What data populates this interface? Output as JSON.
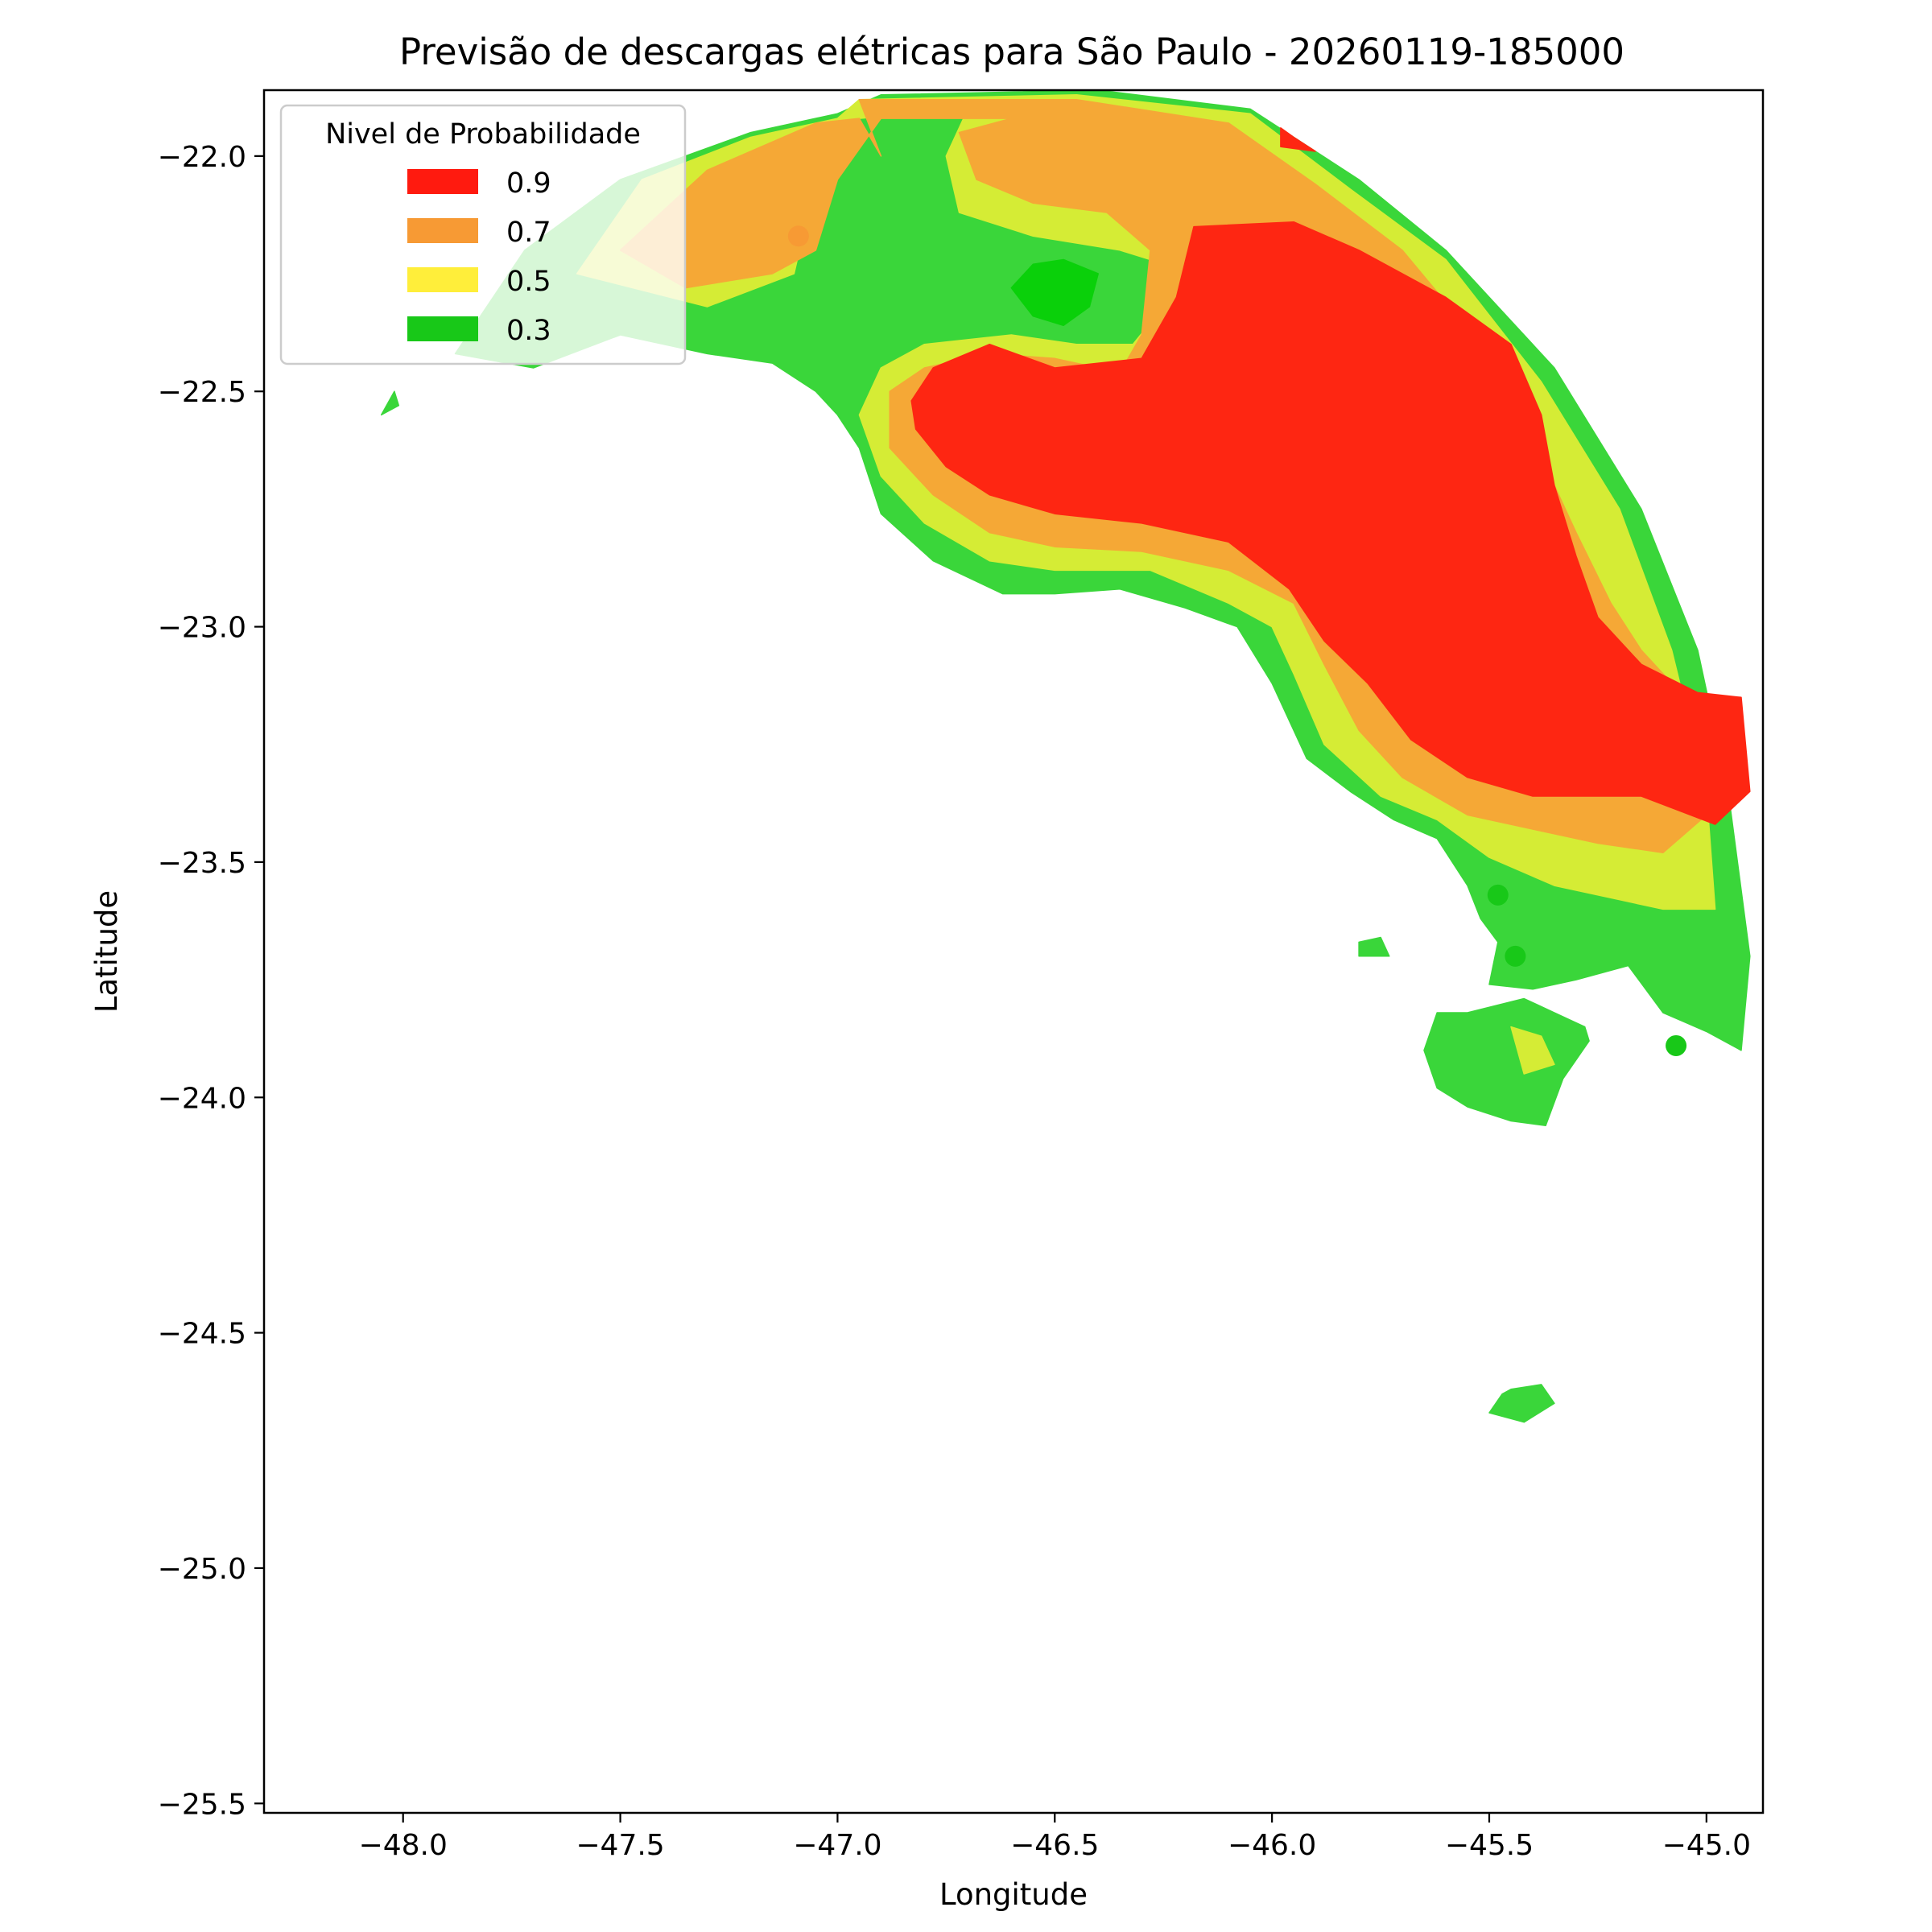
{
  "chart_data": {
    "type": "heatmap",
    "title": "Previsão de descargas elétricas para São Paulo - 20260119-185000",
    "xlabel": "Longitude",
    "ylabel": "Latitude",
    "xlim": [
      -48.32,
      -44.87
    ],
    "ylim": [
      -25.52,
      -21.86
    ],
    "xticks": [
      {
        "value": -48.0,
        "label": "−48.0"
      },
      {
        "value": -47.5,
        "label": "−47.5"
      },
      {
        "value": -47.0,
        "label": "−47.0"
      },
      {
        "value": -46.5,
        "label": "−46.5"
      },
      {
        "value": -46.0,
        "label": "−46.0"
      },
      {
        "value": -45.5,
        "label": "−45.5"
      },
      {
        "value": -45.0,
        "label": "−45.0"
      }
    ],
    "yticks": [
      {
        "value": -22.0,
        "label": "−22.0"
      },
      {
        "value": -22.5,
        "label": "−22.5"
      },
      {
        "value": -23.0,
        "label": "−23.0"
      },
      {
        "value": -23.5,
        "label": "−23.5"
      },
      {
        "value": -24.0,
        "label": "−24.0"
      },
      {
        "value": -24.5,
        "label": "−24.5"
      },
      {
        "value": -25.0,
        "label": "−25.0"
      },
      {
        "value": -25.5,
        "label": "−25.5"
      }
    ],
    "grid": false,
    "legend": {
      "title": "Nivel de Probabilidade",
      "placement": "upper-left",
      "entries": [
        {
          "label": "0.9",
          "color": "#ff1a0f"
        },
        {
          "label": "0.7",
          "color": "#f79a34"
        },
        {
          "label": "0.5",
          "color": "#ffee3a"
        },
        {
          "label": "0.3",
          "color": "#18c818"
        }
      ]
    },
    "levels": [
      {
        "level": 0.3,
        "color": "#3ad63a",
        "polygons": [
          [
            [
              -47.88,
              -22.42
            ],
            [
              -47.72,
              -22.2
            ],
            [
              -47.5,
              -22.05
            ],
            [
              -47.2,
              -21.95
            ],
            [
              -47.0,
              -21.91
            ],
            [
              -46.9,
              -21.87
            ],
            [
              -46.4,
              -21.86
            ],
            [
              -46.05,
              -21.9
            ],
            [
              -45.8,
              -22.05
            ],
            [
              -45.6,
              -22.2
            ],
            [
              -45.35,
              -22.45
            ],
            [
              -45.15,
              -22.75
            ],
            [
              -45.02,
              -23.05
            ],
            [
              -44.95,
              -23.35
            ],
            [
              -44.9,
              -23.7
            ],
            [
              -44.92,
              -23.9
            ],
            [
              -45.0,
              -23.86
            ],
            [
              -45.1,
              -23.82
            ],
            [
              -45.18,
              -23.72
            ],
            [
              -45.3,
              -23.75
            ],
            [
              -45.4,
              -23.77
            ],
            [
              -45.5,
              -23.76
            ],
            [
              -45.48,
              -23.67
            ],
            [
              -45.52,
              -23.62
            ],
            [
              -45.55,
              -23.55
            ],
            [
              -45.62,
              -23.45
            ],
            [
              -45.72,
              -23.41
            ],
            [
              -45.82,
              -23.35
            ],
            [
              -45.92,
              -23.28
            ],
            [
              -46.0,
              -23.12
            ],
            [
              -46.08,
              -23.0
            ],
            [
              -46.2,
              -22.96
            ],
            [
              -46.35,
              -22.92
            ],
            [
              -46.5,
              -22.93
            ],
            [
              -46.62,
              -22.93
            ],
            [
              -46.78,
              -22.86
            ],
            [
              -46.9,
              -22.76
            ],
            [
              -46.95,
              -22.62
            ],
            [
              -47.0,
              -22.55
            ],
            [
              -47.05,
              -22.5
            ],
            [
              -47.15,
              -22.44
            ],
            [
              -47.3,
              -22.42
            ],
            [
              -47.5,
              -22.38
            ],
            [
              -47.7,
              -22.45
            ],
            [
              -47.88,
              -22.42
            ]
          ],
          [
            [
              -45.55,
              -23.82
            ],
            [
              -45.42,
              -23.79
            ],
            [
              -45.35,
              -23.82
            ],
            [
              -45.28,
              -23.85
            ],
            [
              -45.27,
              -23.88
            ],
            [
              -45.33,
              -23.96
            ],
            [
              -45.37,
              -24.06
            ],
            [
              -45.45,
              -24.05
            ],
            [
              -45.55,
              -24.02
            ],
            [
              -45.62,
              -23.98
            ],
            [
              -45.65,
              -23.9
            ],
            [
              -45.62,
              -23.82
            ],
            [
              -45.55,
              -23.82
            ]
          ],
          [
            [
              -45.45,
              -24.62
            ],
            [
              -45.38,
              -24.61
            ],
            [
              -45.35,
              -24.65
            ],
            [
              -45.42,
              -24.69
            ],
            [
              -45.5,
              -24.67
            ],
            [
              -45.47,
              -24.63
            ],
            [
              -45.45,
              -24.62
            ]
          ],
          [
            [
              -45.8,
              -23.67
            ],
            [
              -45.75,
              -23.66
            ],
            [
              -45.73,
              -23.7
            ],
            [
              -45.8,
              -23.7
            ],
            [
              -45.8,
              -23.67
            ]
          ],
          [
            [
              -48.05,
              -22.55
            ],
            [
              -48.02,
              -22.5
            ],
            [
              -48.01,
              -22.53
            ],
            [
              -48.05,
              -22.55
            ]
          ]
        ]
      },
      {
        "level": 0.5,
        "color": "#d5ec35",
        "polygons": [
          [
            [
              -47.6,
              -22.25
            ],
            [
              -47.45,
              -22.05
            ],
            [
              -47.2,
              -21.96
            ],
            [
              -47.0,
              -21.92
            ],
            [
              -46.95,
              -21.88
            ],
            [
              -46.45,
              -21.87
            ],
            [
              -46.05,
              -21.91
            ],
            [
              -45.82,
              -22.07
            ],
            [
              -45.6,
              -22.22
            ],
            [
              -45.38,
              -22.48
            ],
            [
              -45.2,
              -22.75
            ],
            [
              -45.08,
              -23.05
            ],
            [
              -45.0,
              -23.35
            ],
            [
              -44.98,
              -23.6
            ],
            [
              -45.1,
              -23.6
            ],
            [
              -45.2,
              -23.58
            ],
            [
              -45.35,
              -23.55
            ],
            [
              -45.5,
              -23.49
            ],
            [
              -45.62,
              -23.41
            ],
            [
              -45.75,
              -23.36
            ],
            [
              -45.88,
              -23.25
            ],
            [
              -45.95,
              -23.1
            ],
            [
              -46.0,
              -23.0
            ],
            [
              -46.1,
              -22.95
            ],
            [
              -46.28,
              -22.88
            ],
            [
              -46.5,
              -22.88
            ],
            [
              -46.65,
              -22.86
            ],
            [
              -46.8,
              -22.78
            ],
            [
              -46.9,
              -22.68
            ],
            [
              -46.95,
              -22.55
            ],
            [
              -46.9,
              -22.45
            ],
            [
              -46.8,
              -22.4
            ],
            [
              -46.6,
              -22.38
            ],
            [
              -46.45,
              -22.4
            ],
            [
              -46.32,
              -22.4
            ],
            [
              -46.25,
              -22.32
            ],
            [
              -46.28,
              -22.22
            ],
            [
              -46.35,
              -22.2
            ],
            [
              -46.55,
              -22.17
            ],
            [
              -46.72,
              -22.12
            ],
            [
              -46.75,
              -22.0
            ],
            [
              -46.7,
              -21.9
            ],
            [
              -46.95,
              -21.92
            ],
            [
              -47.05,
              -22.05
            ],
            [
              -47.1,
              -22.25
            ],
            [
              -47.3,
              -22.32
            ],
            [
              -47.6,
              -22.25
            ]
          ],
          [
            [
              -45.45,
              -23.85
            ],
            [
              -45.38,
              -23.87
            ],
            [
              -45.35,
              -23.93
            ],
            [
              -45.42,
              -23.95
            ],
            [
              -45.45,
              -23.85
            ]
          ]
        ]
      },
      {
        "level": 0.7,
        "color": "#f5a836",
        "polygons": [
          [
            [
              -47.5,
              -22.2
            ],
            [
              -47.3,
              -22.03
            ],
            [
              -47.05,
              -21.93
            ],
            [
              -46.95,
              -21.92
            ],
            [
              -46.9,
              -22.0
            ],
            [
              -46.95,
              -21.88
            ],
            [
              -46.45,
              -21.88
            ],
            [
              -46.1,
              -21.93
            ],
            [
              -45.9,
              -22.06
            ],
            [
              -45.7,
              -22.2
            ],
            [
              -45.52,
              -22.4
            ],
            [
              -45.4,
              -22.6
            ],
            [
              -45.3,
              -22.8
            ],
            [
              -45.22,
              -22.95
            ],
            [
              -45.15,
              -23.05
            ],
            [
              -45.05,
              -23.15
            ],
            [
              -45.0,
              -23.4
            ],
            [
              -45.1,
              -23.48
            ],
            [
              -45.25,
              -23.46
            ],
            [
              -45.4,
              -23.43
            ],
            [
              -45.55,
              -23.4
            ],
            [
              -45.7,
              -23.32
            ],
            [
              -45.8,
              -23.22
            ],
            [
              -45.88,
              -23.08
            ],
            [
              -45.95,
              -22.95
            ],
            [
              -46.1,
              -22.88
            ],
            [
              -46.3,
              -22.84
            ],
            [
              -46.5,
              -22.83
            ],
            [
              -46.65,
              -22.8
            ],
            [
              -46.78,
              -22.72
            ],
            [
              -46.88,
              -22.62
            ],
            [
              -46.88,
              -22.5
            ],
            [
              -46.8,
              -22.45
            ],
            [
              -46.65,
              -22.42
            ],
            [
              -46.5,
              -22.43
            ],
            [
              -46.35,
              -22.46
            ],
            [
              -46.3,
              -22.38
            ],
            [
              -46.28,
              -22.2
            ],
            [
              -46.38,
              -22.12
            ],
            [
              -46.55,
              -22.1
            ],
            [
              -46.68,
              -22.05
            ],
            [
              -46.72,
              -21.95
            ],
            [
              -46.6,
              -21.92
            ],
            [
              -46.9,
              -21.92
            ],
            [
              -47.0,
              -22.05
            ],
            [
              -47.05,
              -22.2
            ],
            [
              -47.15,
              -22.25
            ],
            [
              -47.35,
              -22.28
            ],
            [
              -47.5,
              -22.2
            ]
          ]
        ]
      },
      {
        "level": 0.9,
        "color": "#fe2612",
        "polygons": [
          [
            [
              -46.83,
              -22.52
            ],
            [
              -46.78,
              -22.45
            ],
            [
              -46.65,
              -22.4
            ],
            [
              -46.5,
              -22.45
            ],
            [
              -46.3,
              -22.43
            ],
            [
              -46.22,
              -22.3
            ],
            [
              -46.18,
              -22.15
            ],
            [
              -45.95,
              -22.14
            ],
            [
              -45.8,
              -22.2
            ],
            [
              -45.6,
              -22.3
            ],
            [
              -45.45,
              -22.4
            ],
            [
              -45.38,
              -22.55
            ],
            [
              -45.35,
              -22.7
            ],
            [
              -45.3,
              -22.85
            ],
            [
              -45.25,
              -22.98
            ],
            [
              -45.15,
              -23.08
            ],
            [
              -45.02,
              -23.14
            ],
            [
              -44.92,
              -23.15
            ],
            [
              -44.9,
              -23.35
            ],
            [
              -44.98,
              -23.42
            ],
            [
              -45.15,
              -23.36
            ],
            [
              -45.4,
              -23.36
            ],
            [
              -45.55,
              -23.32
            ],
            [
              -45.68,
              -23.24
            ],
            [
              -45.78,
              -23.12
            ],
            [
              -45.88,
              -23.03
            ],
            [
              -45.96,
              -22.92
            ],
            [
              -46.1,
              -22.82
            ],
            [
              -46.3,
              -22.78
            ],
            [
              -46.5,
              -22.76
            ],
            [
              -46.65,
              -22.72
            ],
            [
              -46.75,
              -22.66
            ],
            [
              -46.82,
              -22.58
            ],
            [
              -46.83,
              -22.52
            ]
          ],
          [
            [
              -45.98,
              -21.94
            ],
            [
              -45.95,
              -21.96
            ],
            [
              -45.9,
              -21.99
            ],
            [
              -45.98,
              -21.98
            ],
            [
              -45.98,
              -21.94
            ]
          ]
        ]
      },
      {
        "level": 0.3,
        "color": "#0ad00a",
        "polygons": [
          [
            [
              -46.6,
              -22.28
            ],
            [
              -46.55,
              -22.23
            ],
            [
              -46.48,
              -22.22
            ],
            [
              -46.4,
              -22.25
            ],
            [
              -46.42,
              -22.32
            ],
            [
              -46.48,
              -22.36
            ],
            [
              -46.55,
              -22.34
            ],
            [
              -46.6,
              -22.28
            ]
          ]
        ]
      }
    ],
    "markers": [
      {
        "x": -47.09,
        "y": -22.17,
        "color": "#f79a34"
      },
      {
        "x": -45.48,
        "y": -23.57,
        "color": "#18c818"
      },
      {
        "x": -45.44,
        "y": -23.7,
        "color": "#18c818"
      },
      {
        "x": -45.07,
        "y": -23.89,
        "color": "#18c818"
      }
    ]
  }
}
